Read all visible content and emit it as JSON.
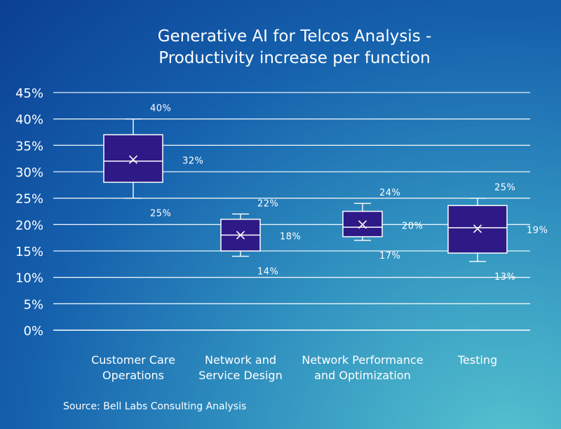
{
  "chart_data": {
    "type": "box",
    "title": "Generative AI for Telcos Analysis  -\nProductivity increase per function",
    "xlabel": "",
    "ylabel": "",
    "ylim": [
      0,
      45
    ],
    "yticks": [
      "0%",
      "5%",
      "10%",
      "15%",
      "20%",
      "25%",
      "30%",
      "35%",
      "40%",
      "45%"
    ],
    "grid": true,
    "categories": [
      "Customer Care\nOperations",
      "Network and\nService Design",
      "Network Performance\nand Optimization",
      "Testing"
    ],
    "boxes": [
      {
        "min": 25,
        "q1": 28,
        "median": 32,
        "q3": 37,
        "max": 40,
        "mean": 32.3,
        "labels": {
          "max": "40%",
          "mean": "32%",
          "min": "25%"
        }
      },
      {
        "min": 14,
        "q1": 15,
        "median": 18,
        "q3": 21,
        "max": 22,
        "mean": 18,
        "labels": {
          "max": "22%",
          "mean": "18%",
          "min": "14%"
        }
      },
      {
        "min": 17,
        "q1": 17.7,
        "median": 19.5,
        "q3": 22.5,
        "max": 24,
        "mean": 20,
        "labels": {
          "max": "24%",
          "mean": "20%",
          "min": "17%"
        }
      },
      {
        "min": 13,
        "q1": 14.6,
        "median": 19.4,
        "q3": 23.6,
        "max": 25,
        "mean": 19.2,
        "labels": {
          "max": "25%",
          "mean": "19%",
          "min": "13%"
        }
      }
    ],
    "colors": {
      "box": "#2e1a87",
      "lines": "#ffffff"
    }
  },
  "source": "Source: Bell Labs Consulting Analysis"
}
